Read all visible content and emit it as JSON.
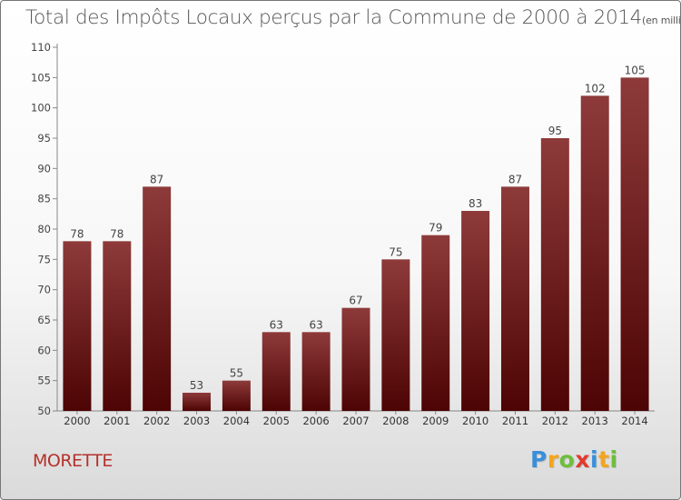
{
  "header": {
    "title": "Total des Impôts Locaux perçus par la Commune de 2000 à 2014",
    "subtitle": "(en milliers d'€)"
  },
  "commune": "MORETTE",
  "logo": {
    "letters": [
      {
        "char": "P",
        "color": "#3a8fd9"
      },
      {
        "char": "r",
        "color": "#f4a51c"
      },
      {
        "char": "o",
        "color": "#6cbf3b"
      },
      {
        "char": "x",
        "color": "#e23a2e"
      },
      {
        "char": "i",
        "color": "#3a8fd9"
      },
      {
        "char": "t",
        "color": "#f4a51c"
      },
      {
        "char": "i",
        "color": "#6cbf3b"
      }
    ]
  },
  "chart_data": {
    "type": "bar",
    "categories": [
      "2000",
      "2001",
      "2002",
      "2003",
      "2004",
      "2005",
      "2006",
      "2007",
      "2008",
      "2009",
      "2010",
      "2011",
      "2012",
      "2013",
      "2014"
    ],
    "values": [
      78,
      78,
      87,
      53,
      55,
      63,
      63,
      67,
      75,
      79,
      83,
      87,
      95,
      102,
      105
    ],
    "ylim": [
      50,
      110
    ],
    "yticks": [
      50,
      55,
      60,
      65,
      70,
      75,
      80,
      85,
      90,
      95,
      100,
      105,
      110
    ],
    "grid": false,
    "bar_color_top": "#8e3a3a",
    "bar_color_bottom": "#4d0404"
  }
}
